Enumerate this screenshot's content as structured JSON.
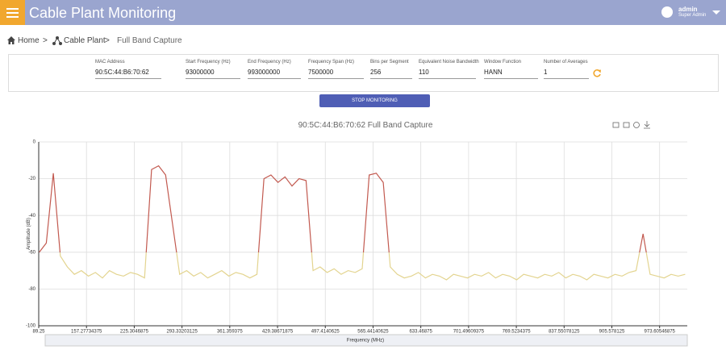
{
  "header": {
    "title": "Cable Plant Monitoring",
    "user": "admin",
    "role": "Super Admin"
  },
  "breadcrumb": [
    "Home",
    "Cable Plant",
    "Full Band Capture"
  ],
  "form": {
    "fields": [
      {
        "label": "MAC Address",
        "value": "90:5C:44:B6:70:62"
      },
      {
        "label": "Start Frequency (Hz)",
        "value": "93000000"
      },
      {
        "label": "End Frequency (Hz)",
        "value": "993000000"
      },
      {
        "label": "Frequency Span (Hz)",
        "value": "7500000"
      },
      {
        "label": "Bins per Segment",
        "value": "256"
      },
      {
        "label": "Equivalent Noise Bandwidth",
        "value": "110"
      },
      {
        "label": "Window Function",
        "value": "HANN"
      },
      {
        "label": "Number of Averages",
        "value": "1"
      }
    ],
    "button": "STOP MONITORING"
  },
  "chart_data": {
    "type": "line",
    "title": "90:5C:44:B6:70:62 Full Band Capture",
    "x_label": "Frequency (MHz)",
    "y_label": "Amplitude (dB)",
    "xlim": [
      89.25,
      1013
    ],
    "ylim": [
      -100,
      0
    ],
    "xticks": [
      89.25,
      157.27734375,
      225.3046875,
      293.33203125,
      361.359375,
      429.38671875,
      497.4140625,
      565.44140625,
      633.46875,
      701.49609375,
      769.5234375,
      837.55078125,
      905.578125,
      973.60546875
    ],
    "yticks": [
      -100,
      -80,
      -60,
      -40,
      -20,
      0
    ],
    "grid": true,
    "visual_map": {
      "threshold": -60,
      "low_color": "#e3d48f",
      "high_color": "#c2594f"
    },
    "series": [
      {
        "x": [
          90,
          100,
          110,
          120,
          130,
          140,
          150,
          160,
          170,
          180,
          190,
          200,
          210,
          220,
          230,
          240,
          250,
          260,
          270,
          280,
          290,
          300,
          310,
          320,
          330,
          340,
          350,
          360,
          370,
          380,
          390,
          400,
          410,
          420,
          430,
          440,
          450,
          460,
          470,
          480,
          490,
          500,
          510,
          520,
          530,
          540,
          550,
          560,
          570,
          580,
          590,
          600,
          610,
          620,
          630,
          640,
          650,
          660,
          670,
          680,
          690,
          700,
          710,
          720,
          730,
          740,
          750,
          760,
          770,
          780,
          790,
          800,
          810,
          820,
          830,
          840,
          850,
          860,
          870,
          880,
          890,
          900,
          910,
          920,
          930,
          940,
          950,
          960,
          970,
          980,
          990,
          1000,
          1010
        ],
        "values": [
          -60,
          -55,
          -17,
          -62,
          -68,
          -72,
          -70,
          -73,
          -71,
          -74,
          -70,
          -72,
          -73,
          -71,
          -72,
          -74,
          -15,
          -13,
          -18,
          -45,
          -72,
          -70,
          -73,
          -71,
          -74,
          -72,
          -70,
          -73,
          -71,
          -72,
          -74,
          -72,
          -20,
          -18,
          -22,
          -19,
          -24,
          -20,
          -21,
          -70,
          -68,
          -71,
          -69,
          -72,
          -70,
          -71,
          -69,
          -18,
          -17,
          -22,
          -68,
          -72,
          -74,
          -73,
          -71,
          -74,
          -72,
          -73,
          -75,
          -72,
          -73,
          -74,
          -72,
          -73,
          -71,
          -74,
          -72,
          -73,
          -75,
          -72,
          -73,
          -74,
          -72,
          -73,
          -71,
          -74,
          -72,
          -73,
          -75,
          -72,
          -73,
          -74,
          -72,
          -73,
          -71,
          -70,
          -50,
          -72,
          -73,
          -74,
          -72,
          -73,
          -72
        ]
      }
    ]
  }
}
